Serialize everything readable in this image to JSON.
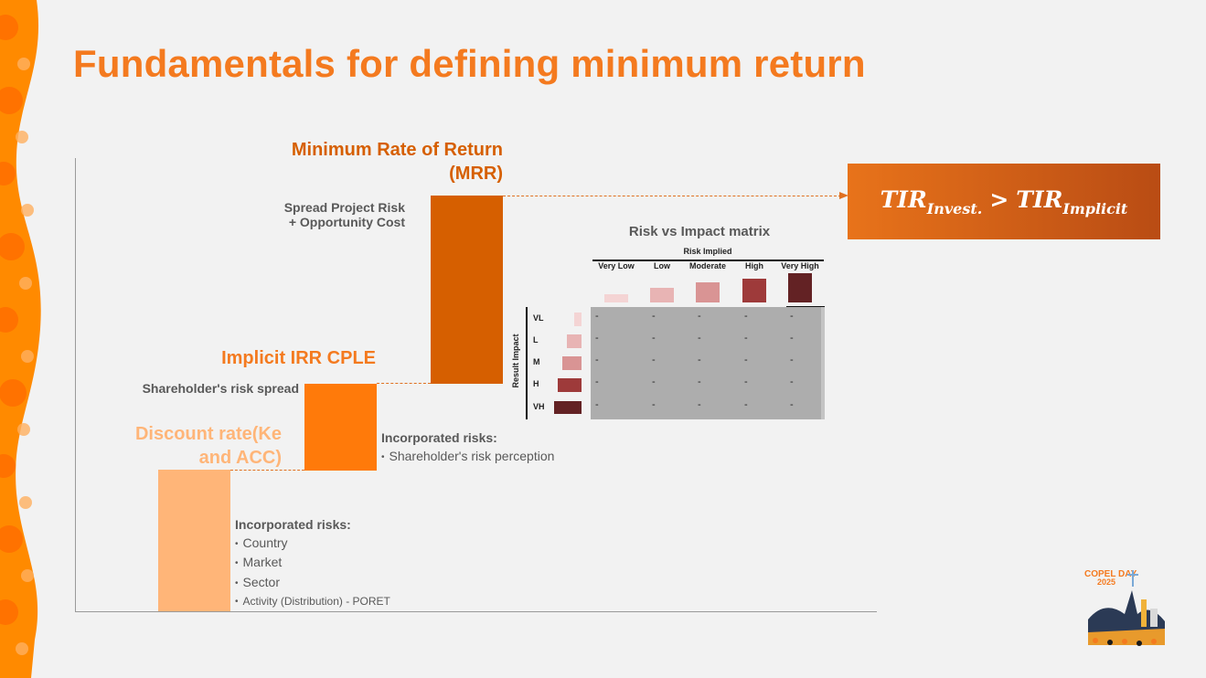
{
  "title": "Fundamentals for defining minimum return",
  "colors": {
    "accent": "#f47a1f",
    "dark_orange": "#d65f00",
    "orange": "#ff7a0a",
    "light_orange": "#ffb578",
    "matrix_grey": "#adadad"
  },
  "steps": {
    "discount": {
      "title": "Discount rate(Ke and ACC)",
      "risks_header": "Incorporated risks:",
      "risks": [
        "Country",
        "Market",
        "Sector",
        "Activity (Distribution) - PORET"
      ]
    },
    "implicit": {
      "title": "Implicit IRR CPLE",
      "spread_label": "Shareholder's risk spread",
      "risks_header": "Incorporated risks:",
      "risks": [
        "Shareholder's risk perception"
      ]
    },
    "mrr": {
      "title": "Minimum Rate of Return (MRR)",
      "spread_label_1": "Spread Project Risk",
      "spread_label_2": "+ Opportunity Cost"
    }
  },
  "tir": {
    "base": "TIR",
    "sub_left": "Invest.",
    "operator": ">",
    "sub_right": "Implicit"
  },
  "matrix": {
    "title": "Risk vs Impact matrix",
    "x_axis_label": "Risk Implied",
    "y_axis_label": "Result Impact",
    "columns": [
      "Very Low",
      "Low",
      "Moderate",
      "High",
      "Very High"
    ],
    "rows": [
      "VL",
      "L",
      "M",
      "H",
      "VH"
    ],
    "cell_value": "-",
    "scale_colors": [
      "#f4d4d4",
      "#e8b4b4",
      "#d99494",
      "#9e3a3a",
      "#632224"
    ],
    "column_levels": [
      0.17,
      0.43,
      0.65,
      0.79,
      1.0
    ],
    "row_levels": [
      0.17,
      0.48,
      0.65,
      0.86,
      1.0
    ]
  },
  "logo": {
    "line1": "COPEL DAY",
    "line2": "2025"
  }
}
